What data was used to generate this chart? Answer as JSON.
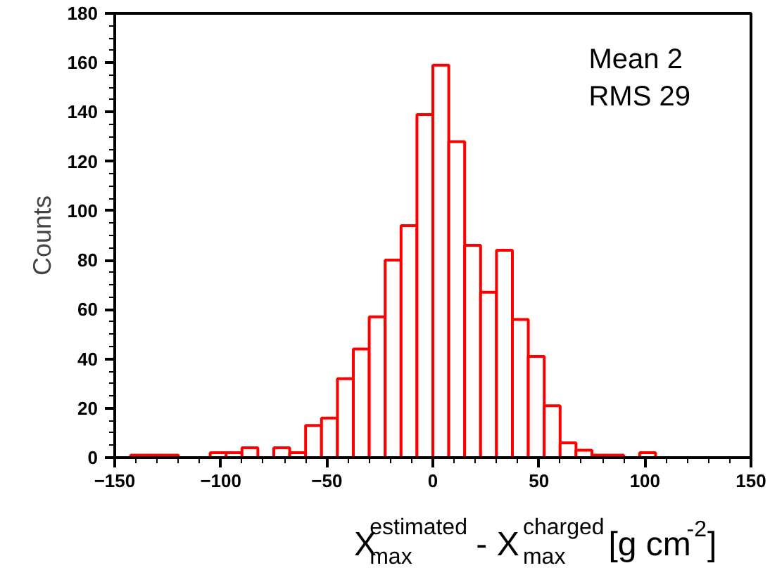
{
  "chart_data": {
    "type": "histogram",
    "xlabel": "X$^{estimated}$$_{max}$ - X$^{charged}$$_{max}$ [g cm$^{-2}$]",
    "ylabel": "Counts",
    "bins": [
      -150,
      -142.5,
      -135,
      -127.5,
      -120,
      -112.5,
      -105,
      -97.5,
      -90,
      -82.5,
      -75,
      -67.5,
      -60,
      -52.5,
      -45,
      -37.5,
      -30,
      -22.5,
      -15,
      -7.5,
      0,
      7.5,
      15,
      22.5,
      30,
      37.5,
      45,
      52.5,
      60,
      67.5,
      75,
      82.5,
      90,
      97.5,
      105,
      112.5,
      120,
      127.5,
      135,
      142.5,
      150
    ],
    "values": [
      0,
      1,
      1,
      1,
      0,
      0,
      2,
      2,
      4,
      0,
      4,
      2,
      13,
      16,
      32,
      44,
      57,
      80,
      94,
      139,
      159,
      128,
      86,
      67,
      84,
      56,
      41,
      21,
      6,
      3,
      1,
      1,
      0,
      2,
      0,
      0,
      0,
      0,
      0,
      0
    ],
    "color": "#ff0000",
    "xlim": [
      -150,
      150
    ],
    "ylim": [
      0,
      180
    ],
    "xticks": [
      -150,
      -100,
      -50,
      0,
      50,
      100,
      150
    ],
    "yticks": [
      0,
      20,
      40,
      60,
      80,
      100,
      120,
      140,
      160,
      180
    ],
    "annotations": [
      "Mean   2",
      "RMS   29"
    ],
    "grid": false,
    "legend": false
  }
}
